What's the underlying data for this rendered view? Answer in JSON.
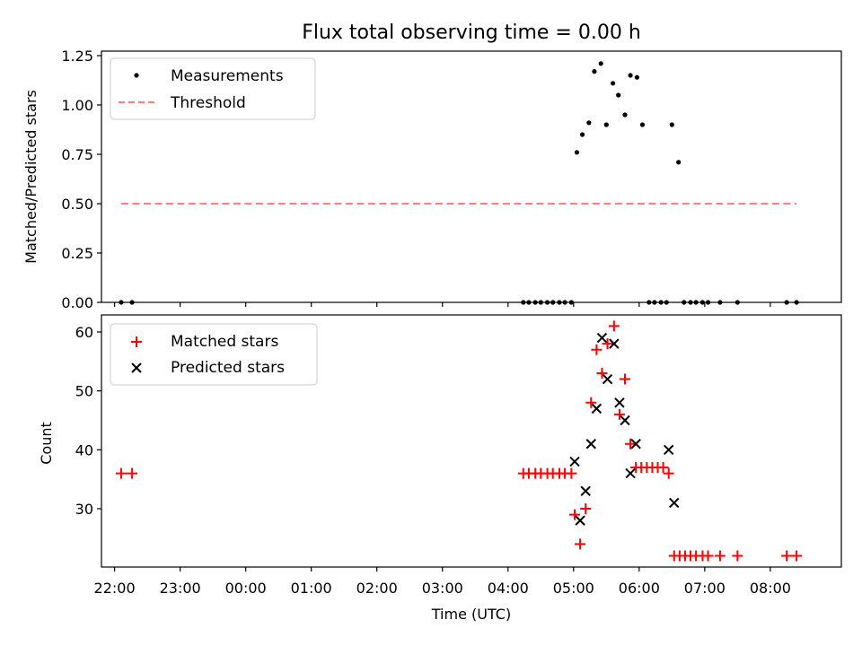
{
  "chart_data": [
    {
      "type": "scatter",
      "title": "Flux total observing time = 0.00 h",
      "xlabel": "",
      "ylabel": "Matched/Predicted stars",
      "ylim": [
        0,
        1.25
      ],
      "yticks": [
        "0.00",
        "0.25",
        "0.50",
        "0.75",
        "1.00",
        "1.25"
      ],
      "xlim": [
        "21:48",
        "09:05"
      ],
      "legend_position": "top-left",
      "colors": {
        "measurements": "#000000",
        "threshold": "#ff7f7f"
      },
      "series": [
        {
          "name": "Measurements",
          "marker": "dot",
          "x": [
            "22:06",
            "22:16",
            "04:14",
            "04:19",
            "04:25",
            "04:30",
            "04:36",
            "04:41",
            "04:47",
            "04:52",
            "04:58",
            "05:03",
            "05:08",
            "05:14",
            "05:19",
            "05:25",
            "05:30",
            "05:36",
            "05:41",
            "05:47",
            "05:52",
            "05:58",
            "06:03",
            "06:09",
            "06:14",
            "06:20",
            "06:25",
            "06:30",
            "06:36",
            "06:41",
            "06:47",
            "06:52",
            "06:58",
            "07:03",
            "07:14",
            "07:30",
            "08:15",
            "08:24"
          ],
          "y": [
            0,
            0,
            0,
            0,
            0,
            0,
            0,
            0,
            0,
            0,
            0,
            0.76,
            0.85,
            0.91,
            1.17,
            1.21,
            0.9,
            1.11,
            1.05,
            0.95,
            1.15,
            1.14,
            0.9,
            0,
            0,
            0,
            0,
            0.9,
            0.71,
            0,
            0,
            0,
            0,
            0,
            0,
            0,
            0,
            0
          ]
        },
        {
          "name": "Threshold",
          "style": "dashed",
          "x": [
            "22:06",
            "08:24"
          ],
          "y": [
            0.5,
            0.5
          ]
        }
      ]
    },
    {
      "type": "scatter",
      "title": "",
      "xlabel": "Time (UTC)",
      "ylabel": "Count",
      "ylim": [
        20,
        63
      ],
      "yticks": [
        "30",
        "40",
        "50",
        "60"
      ],
      "xticks": [
        "22:00",
        "23:00",
        "00:00",
        "01:00",
        "02:00",
        "03:00",
        "04:00",
        "05:00",
        "06:00",
        "07:00",
        "08:00"
      ],
      "xlim": [
        "21:48",
        "09:05"
      ],
      "legend_position": "top-left",
      "colors": {
        "matched": "#ff0000",
        "predicted": "#000000"
      },
      "series": [
        {
          "name": "Matched stars",
          "marker": "plus",
          "x": [
            "22:06",
            "22:16",
            "04:14",
            "04:19",
            "04:25",
            "04:30",
            "04:36",
            "04:41",
            "04:47",
            "04:52",
            "04:58",
            "05:01",
            "05:06",
            "05:11",
            "05:16",
            "05:21",
            "05:26",
            "05:31",
            "05:37",
            "05:42",
            "05:47",
            "05:52",
            "05:57",
            "06:02",
            "06:07",
            "06:12",
            "06:17",
            "06:22",
            "06:27",
            "06:32",
            "06:37",
            "06:42",
            "06:47",
            "06:52",
            "06:58",
            "07:03",
            "07:14",
            "07:30",
            "08:15",
            "08:24"
          ],
          "y": [
            36,
            36,
            36,
            36,
            36,
            36,
            36,
            36,
            36,
            36,
            36,
            29,
            24,
            30,
            48,
            57,
            53,
            58,
            61,
            46,
            52,
            41,
            37,
            37,
            37,
            37,
            37,
            37,
            36,
            22,
            22,
            22,
            22,
            22,
            22,
            22,
            22,
            22,
            22,
            22
          ]
        },
        {
          "name": "Predicted stars",
          "marker": "x",
          "x": [
            "05:01",
            "05:06",
            "05:11",
            "05:16",
            "05:21",
            "05:26",
            "05:31",
            "05:37",
            "05:42",
            "05:47",
            "05:52",
            "05:57",
            "06:27",
            "06:32"
          ],
          "y": [
            38,
            28,
            33,
            41,
            47,
            59,
            52,
            58,
            48,
            45,
            36,
            41,
            40,
            31
          ]
        }
      ]
    }
  ]
}
